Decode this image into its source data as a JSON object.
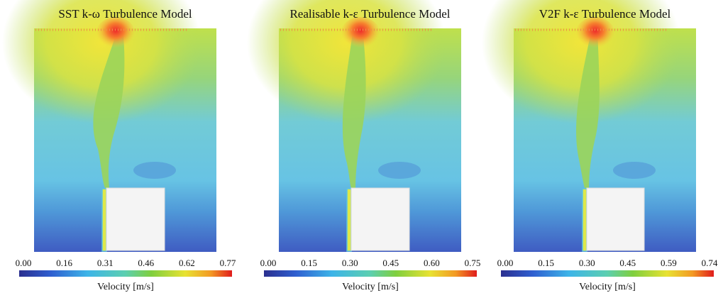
{
  "panels": [
    {
      "title": "SST k-ω Turbulence Model",
      "colorbar": {
        "ticks": [
          "0.00",
          "0.16",
          "0.31",
          "0.46",
          "0.62",
          "0.77"
        ],
        "label": "Velocity [m/s]"
      }
    },
    {
      "title": "Realisable k-ε Turbulence Model",
      "colorbar": {
        "ticks": [
          "0.00",
          "0.15",
          "0.30",
          "0.45",
          "0.60",
          "0.75"
        ],
        "label": "Velocity [m/s]"
      }
    },
    {
      "title": "V2F k-ε Turbulence Model",
      "colorbar": {
        "ticks": [
          "0.00",
          "0.15",
          "0.30",
          "0.45",
          "0.59",
          "0.74"
        ],
        "label": "Velocity [m/s]"
      }
    }
  ]
}
